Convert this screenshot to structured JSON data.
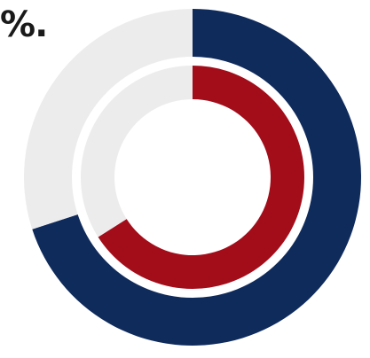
{
  "fragment_text": "%.",
  "chart_data": {
    "type": "pie",
    "variant": "nested-donut",
    "start_angle": "12 o'clock",
    "direction": "clockwise",
    "series": [
      {
        "values": [
          70,
          30
        ],
        "colors": [
          "#0f2b5c",
          "#ececec"
        ]
      },
      {
        "values": [
          66,
          34
        ],
        "colors": [
          "#a30d1a",
          "#ececec"
        ]
      }
    ]
  }
}
